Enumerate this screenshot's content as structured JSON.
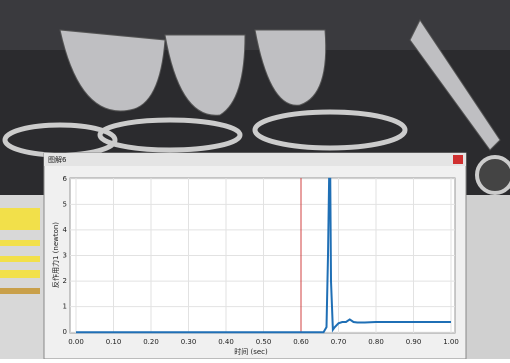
{
  "window": {
    "title": "图解6"
  },
  "chart_data": {
    "type": "line",
    "ylabel": "反作用力1 (newton)",
    "xlabel": "时间 (sec)",
    "x": [
      0,
      0.66,
      0.668,
      0.672,
      0.675,
      0.678,
      0.68,
      0.685,
      0.69,
      0.7,
      0.71,
      0.72,
      0.73,
      0.74,
      0.75,
      0.77,
      0.8,
      0.85,
      0.9,
      0.95,
      1.0
    ],
    "series": [
      {
        "color": "#1f6fb5",
        "values": [
          0,
          0,
          0.2,
          3,
          6,
          6,
          2,
          0.1,
          0.2,
          0.35,
          0.4,
          0.4,
          0.5,
          0.4,
          0.38,
          0.38,
          0.4,
          0.4,
          0.4,
          0.4,
          0.4
        ]
      }
    ],
    "xlim": [
      0,
      1
    ],
    "ylim": [
      -0.03,
      6.03
    ],
    "xticks": [
      {
        "value": 0,
        "label": "0.00"
      },
      {
        "value": 0.1,
        "label": "0.10"
      },
      {
        "value": 0.2,
        "label": "0.20"
      },
      {
        "value": 0.3,
        "label": "0.30"
      },
      {
        "value": 0.4,
        "label": "0.40"
      },
      {
        "value": 0.5,
        "label": "0.50"
      },
      {
        "value": 0.6,
        "label": "0.60"
      },
      {
        "value": 0.7,
        "label": "0.70"
      },
      {
        "value": 0.8,
        "label": "0.80"
      },
      {
        "value": 0.9,
        "label": "0.90"
      },
      {
        "value": 1,
        "label": "1.00"
      }
    ],
    "yticks": [
      0,
      1,
      2,
      3,
      4,
      5,
      6
    ],
    "marker_x": 0.6,
    "marker_color": "#d04040",
    "grid": true
  }
}
